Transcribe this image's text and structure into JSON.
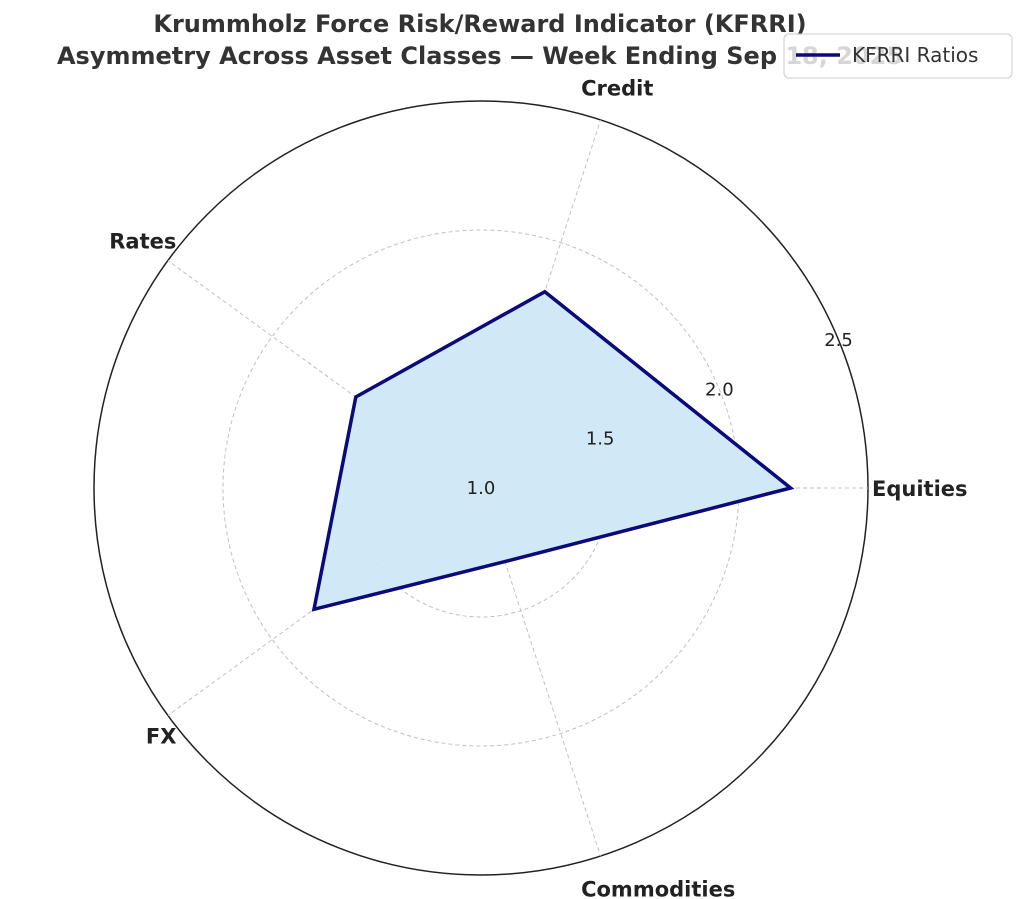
{
  "chart_data": {
    "type": "radar",
    "title": "Krummholz Force Risk/Reward Indicator (KFRRI)",
    "subtitle": "Asymmetry Across Asset Classes — Week Ending Sep 18, 2025",
    "categories": [
      "Equities",
      "Credit",
      "Rates",
      "FX",
      "Commodities"
    ],
    "series": [
      {
        "name": "KFRRI Ratios",
        "values": [
          2.2,
          1.8,
          1.6,
          1.8,
          1.3
        ]
      }
    ],
    "rlim": [
      1.0,
      2.5
    ],
    "rticks": [
      1.0,
      1.5,
      2.0,
      2.5
    ],
    "rtick_labels": [
      "1.0",
      "1.5",
      "2.0",
      "2.5"
    ],
    "grid": true,
    "legend_position": "top-right",
    "colors": {
      "line": "#0a0a7a",
      "fill": "#cfe8f5",
      "grid": "#c0c0c0",
      "outer_ring": "#222222"
    }
  }
}
